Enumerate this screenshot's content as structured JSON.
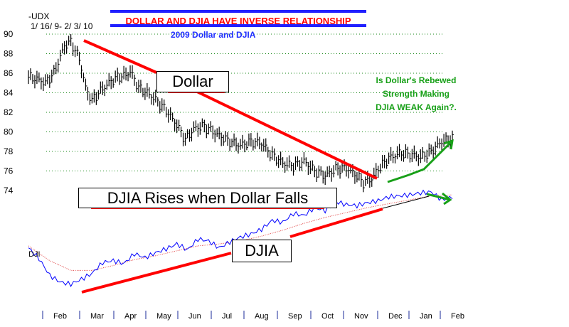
{
  "header": {
    "symbol": "-UDX",
    "date_range": "1/ 16/ 9- 2/ 3/ 10",
    "title": "DOLLAR AND DJIA HAVE INVERSE RELATIONSHIP",
    "subtitle": "2009 Dollar and DJIA"
  },
  "annotations": {
    "dollar_box": "Dollar",
    "djia_rises_box": "DJIA Rises when Dollar Falls",
    "djia_box": "DJIA",
    "djia_tag": "DJI",
    "question_line1": "Is Dollar's Rebewed",
    "question_line2": "Strength Making",
    "question_line3": "DJIA WEAK Again?."
  },
  "colors": {
    "trend": "#ff0000",
    "arrow": "#18a018",
    "djia_line": "#0000ff",
    "djia_ma": "#e04040",
    "bars": "#000000",
    "grid": "#1a8a1a",
    "rule": "#2020ff"
  },
  "chart_data": [
    {
      "type": "line",
      "title": "2009 Dollar and DJIA",
      "series": [
        {
          "name": "Dollar",
          "points": [
            [
              0,
              85.6
            ],
            [
              4,
              85.4
            ],
            [
              8,
              85.0
            ],
            [
              12,
              86.0
            ],
            [
              17,
              88.8
            ],
            [
              20,
              89.2
            ],
            [
              24,
              87.5
            ],
            [
              27,
              84.5
            ],
            [
              30,
              83.2
            ],
            [
              34,
              84.2
            ],
            [
              38,
              85.0
            ],
            [
              42,
              85.6
            ],
            [
              46,
              85.8
            ],
            [
              48,
              86.2
            ],
            [
              52,
              84.5
            ],
            [
              56,
              84.0
            ],
            [
              60,
              83.3
            ],
            [
              65,
              82.2
            ],
            [
              70,
              80.7
            ],
            [
              74,
              79.2
            ],
            [
              78,
              80.3
            ],
            [
              82,
              80.6
            ],
            [
              86,
              80.2
            ],
            [
              90,
              79.6
            ],
            [
              95,
              79.0
            ],
            [
              100,
              78.6
            ],
            [
              105,
              79.0
            ],
            [
              110,
              78.8
            ],
            [
              115,
              77.6
            ],
            [
              120,
              76.8
            ],
            [
              125,
              76.5
            ],
            [
              130,
              77.0
            ],
            [
              135,
              76.0
            ],
            [
              140,
              75.5
            ],
            [
              145,
              76.2
            ],
            [
              150,
              76.3
            ],
            [
              155,
              75.5
            ],
            [
              158,
              74.8
            ],
            [
              162,
              75.2
            ],
            [
              165,
              76.2
            ],
            [
              170,
              77.3
            ],
            [
              175,
              77.8
            ],
            [
              180,
              77.7
            ],
            [
              185,
              77.4
            ],
            [
              190,
              78.0
            ],
            [
              195,
              79.0
            ],
            [
              200,
              79.3
            ]
          ]
        },
        {
          "name": "DJIA",
          "points": [
            [
              0,
              0.43
            ],
            [
              5,
              0.32
            ],
            [
              10,
              0.15
            ],
            [
              15,
              0.08
            ],
            [
              20,
              0.06
            ],
            [
              25,
              0.11
            ],
            [
              30,
              0.17
            ],
            [
              35,
              0.28
            ],
            [
              40,
              0.3
            ],
            [
              45,
              0.27
            ],
            [
              50,
              0.37
            ],
            [
              55,
              0.33
            ],
            [
              60,
              0.38
            ],
            [
              65,
              0.42
            ],
            [
              70,
              0.47
            ],
            [
              75,
              0.41
            ],
            [
              80,
              0.52
            ],
            [
              85,
              0.5
            ],
            [
              90,
              0.43
            ],
            [
              95,
              0.49
            ],
            [
              100,
              0.54
            ],
            [
              105,
              0.57
            ],
            [
              110,
              0.62
            ],
            [
              115,
              0.71
            ],
            [
              120,
              0.69
            ],
            [
              125,
              0.78
            ],
            [
              130,
              0.76
            ],
            [
              135,
              0.84
            ],
            [
              140,
              0.81
            ],
            [
              145,
              0.9
            ],
            [
              150,
              0.87
            ],
            [
              155,
              0.86
            ],
            [
              160,
              0.89
            ],
            [
              165,
              0.91
            ],
            [
              170,
              0.95
            ],
            [
              175,
              0.96
            ],
            [
              180,
              0.97
            ],
            [
              185,
              0.99
            ],
            [
              190,
              1.0
            ],
            [
              195,
              0.92
            ],
            [
              200,
              0.95
            ]
          ]
        },
        {
          "name": "DJIA moving average",
          "points": [
            [
              0,
              0.45
            ],
            [
              10,
              0.3
            ],
            [
              20,
              0.2
            ],
            [
              30,
              0.2
            ],
            [
              40,
              0.25
            ],
            [
              50,
              0.31
            ],
            [
              60,
              0.35
            ],
            [
              70,
              0.4
            ],
            [
              80,
              0.45
            ],
            [
              90,
              0.47
            ],
            [
              100,
              0.5
            ],
            [
              110,
              0.55
            ],
            [
              120,
              0.61
            ],
            [
              130,
              0.68
            ],
            [
              140,
              0.74
            ],
            [
              150,
              0.79
            ],
            [
              160,
              0.84
            ],
            [
              170,
              0.88
            ],
            [
              180,
              0.92
            ],
            [
              190,
              0.96
            ],
            [
              200,
              0.97
            ]
          ]
        }
      ],
      "ylim": [
        74,
        90
      ],
      "yticks": [
        "74",
        "76",
        "78",
        "80",
        "82",
        "84",
        "86",
        "88",
        "90"
      ],
      "months": [
        "Feb",
        "Mar",
        "Apr",
        "May",
        "Jun",
        "Jul",
        "Aug",
        "Sep",
        "Oct",
        "Nov",
        "Dec",
        "Jan",
        "Feb"
      ],
      "grid": "horizontal dotted"
    }
  ]
}
